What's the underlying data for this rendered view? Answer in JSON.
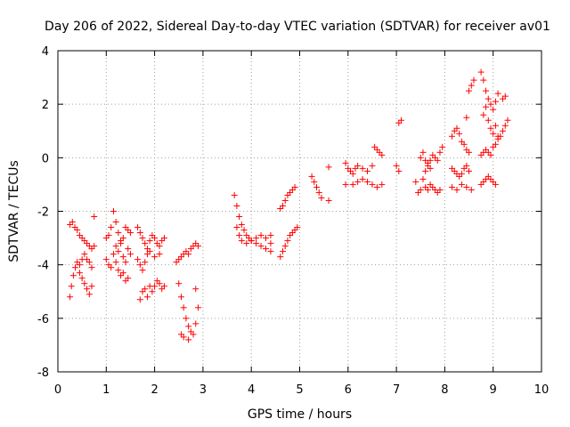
{
  "chart_data": {
    "type": "scatter",
    "title": "Day 206 of 2022, Sidereal Day-to-day VTEC variation (SDTVAR) for receiver av01",
    "xlabel": "GPS time / hours",
    "ylabel": "SDTVAR / TECUs",
    "xlim": [
      0,
      10
    ],
    "ylim": [
      -8,
      4
    ],
    "xticks": [
      0,
      1,
      2,
      3,
      4,
      5,
      6,
      7,
      8,
      9,
      10
    ],
    "yticks": [
      -8,
      -6,
      -4,
      -2,
      0,
      2,
      4
    ],
    "grid": true,
    "marker": "plus",
    "color": "#ff0000",
    "series": [
      {
        "values": [
          [
            0.25,
            -2.5
          ],
          [
            0.3,
            -2.4
          ],
          [
            0.35,
            -2.6
          ],
          [
            0.4,
            -2.7
          ],
          [
            0.45,
            -2.9
          ],
          [
            0.5,
            -3.0
          ],
          [
            0.55,
            -3.1
          ],
          [
            0.6,
            -3.2
          ],
          [
            0.65,
            -3.3
          ],
          [
            0.7,
            -3.4
          ],
          [
            0.75,
            -3.3
          ],
          [
            0.25,
            -5.2
          ],
          [
            0.28,
            -4.8
          ],
          [
            0.32,
            -4.4
          ],
          [
            0.36,
            -4.1
          ],
          [
            0.4,
            -3.9
          ],
          [
            0.45,
            -4.0
          ],
          [
            0.5,
            -3.8
          ],
          [
            0.55,
            -3.6
          ],
          [
            0.6,
            -3.8
          ],
          [
            0.65,
            -3.9
          ],
          [
            0.7,
            -4.1
          ],
          [
            0.45,
            -4.3
          ],
          [
            0.5,
            -4.5
          ],
          [
            0.55,
            -4.7
          ],
          [
            0.6,
            -4.9
          ],
          [
            0.65,
            -5.1
          ],
          [
            0.7,
            -4.8
          ],
          [
            0.75,
            -2.2
          ],
          [
            1.0,
            -3.0
          ],
          [
            1.05,
            -2.9
          ],
          [
            1.1,
            -2.6
          ],
          [
            1.15,
            -2.0
          ],
          [
            1.2,
            -2.4
          ],
          [
            1.25,
            -2.8
          ],
          [
            1.3,
            -3.1
          ],
          [
            1.35,
            -3.0
          ],
          [
            1.4,
            -2.6
          ],
          [
            1.45,
            -2.7
          ],
          [
            1.5,
            -2.8
          ],
          [
            1.0,
            -3.8
          ],
          [
            1.05,
            -4.0
          ],
          [
            1.1,
            -4.1
          ],
          [
            1.15,
            -3.6
          ],
          [
            1.2,
            -3.9
          ],
          [
            1.25,
            -4.2
          ],
          [
            1.3,
            -4.4
          ],
          [
            1.35,
            -4.3
          ],
          [
            1.4,
            -4.6
          ],
          [
            1.45,
            -4.5
          ],
          [
            1.2,
            -3.3
          ],
          [
            1.25,
            -3.5
          ],
          [
            1.3,
            -3.2
          ],
          [
            1.35,
            -3.7
          ],
          [
            1.4,
            -3.9
          ],
          [
            1.45,
            -3.4
          ],
          [
            1.5,
            -3.6
          ],
          [
            1.65,
            -2.6
          ],
          [
            1.7,
            -2.8
          ],
          [
            1.75,
            -3.0
          ],
          [
            1.8,
            -3.2
          ],
          [
            1.85,
            -3.4
          ],
          [
            1.9,
            -3.1
          ],
          [
            1.95,
            -2.9
          ],
          [
            2.0,
            -3.0
          ],
          [
            2.05,
            -3.2
          ],
          [
            2.1,
            -3.3
          ],
          [
            2.15,
            -3.1
          ],
          [
            2.2,
            -3.0
          ],
          [
            1.65,
            -3.8
          ],
          [
            1.7,
            -4.0
          ],
          [
            1.75,
            -4.2
          ],
          [
            1.8,
            -3.9
          ],
          [
            1.85,
            -3.6
          ],
          [
            1.9,
            -3.5
          ],
          [
            2.0,
            -3.7
          ],
          [
            2.1,
            -3.6
          ],
          [
            1.7,
            -5.3
          ],
          [
            1.75,
            -5.0
          ],
          [
            1.8,
            -4.9
          ],
          [
            1.85,
            -5.2
          ],
          [
            1.9,
            -4.8
          ],
          [
            1.95,
            -5.0
          ],
          [
            2.0,
            -4.8
          ],
          [
            2.05,
            -4.6
          ],
          [
            2.1,
            -4.7
          ],
          [
            2.15,
            -4.9
          ],
          [
            2.2,
            -4.8
          ],
          [
            2.45,
            -3.9
          ],
          [
            2.5,
            -3.8
          ],
          [
            2.55,
            -3.7
          ],
          [
            2.6,
            -3.6
          ],
          [
            2.65,
            -3.5
          ],
          [
            2.7,
            -3.6
          ],
          [
            2.75,
            -3.4
          ],
          [
            2.8,
            -3.3
          ],
          [
            2.85,
            -3.2
          ],
          [
            2.9,
            -3.3
          ],
          [
            2.5,
            -4.7
          ],
          [
            2.55,
            -5.2
          ],
          [
            2.6,
            -5.6
          ],
          [
            2.65,
            -6.0
          ],
          [
            2.7,
            -6.3
          ],
          [
            2.75,
            -6.5
          ],
          [
            2.8,
            -6.6
          ],
          [
            2.85,
            -6.2
          ],
          [
            2.9,
            -5.6
          ],
          [
            2.55,
            -6.6
          ],
          [
            2.6,
            -6.7
          ],
          [
            2.7,
            -6.8
          ],
          [
            2.85,
            -4.9
          ],
          [
            3.65,
            -1.4
          ],
          [
            3.7,
            -1.8
          ],
          [
            3.75,
            -2.2
          ],
          [
            3.8,
            -2.5
          ],
          [
            3.85,
            -2.7
          ],
          [
            3.9,
            -2.9
          ],
          [
            3.95,
            -3.0
          ],
          [
            4.0,
            -3.1
          ],
          [
            4.1,
            -3.2
          ],
          [
            4.2,
            -3.3
          ],
          [
            4.3,
            -3.4
          ],
          [
            4.4,
            -3.5
          ],
          [
            3.7,
            -2.6
          ],
          [
            3.75,
            -2.9
          ],
          [
            3.8,
            -3.1
          ],
          [
            3.9,
            -3.2
          ],
          [
            4.0,
            -3.1
          ],
          [
            4.1,
            -3.0
          ],
          [
            4.2,
            -2.9
          ],
          [
            4.3,
            -3.0
          ],
          [
            4.4,
            -2.9
          ],
          [
            4.4,
            -3.2
          ],
          [
            4.6,
            -3.7
          ],
          [
            4.65,
            -3.5
          ],
          [
            4.7,
            -3.3
          ],
          [
            4.75,
            -3.1
          ],
          [
            4.8,
            -2.9
          ],
          [
            4.85,
            -2.8
          ],
          [
            4.9,
            -2.7
          ],
          [
            4.95,
            -2.6
          ],
          [
            4.6,
            -1.9
          ],
          [
            4.65,
            -1.8
          ],
          [
            4.7,
            -1.6
          ],
          [
            4.75,
            -1.4
          ],
          [
            4.8,
            -1.3
          ],
          [
            4.85,
            -1.2
          ],
          [
            4.9,
            -1.1
          ],
          [
            5.25,
            -0.7
          ],
          [
            5.3,
            -0.9
          ],
          [
            5.35,
            -1.1
          ],
          [
            5.4,
            -1.3
          ],
          [
            5.45,
            -1.5
          ],
          [
            5.6,
            -0.35
          ],
          [
            5.6,
            -1.6
          ],
          [
            5.95,
            -0.2
          ],
          [
            6.0,
            -0.4
          ],
          [
            6.05,
            -0.5
          ],
          [
            6.1,
            -0.6
          ],
          [
            6.15,
            -0.4
          ],
          [
            6.2,
            -0.3
          ],
          [
            6.3,
            -0.4
          ],
          [
            6.4,
            -0.5
          ],
          [
            6.5,
            -0.3
          ],
          [
            6.55,
            0.4
          ],
          [
            6.6,
            0.3
          ],
          [
            6.65,
            0.2
          ],
          [
            6.7,
            0.1
          ],
          [
            5.95,
            -1.0
          ],
          [
            6.1,
            -1.0
          ],
          [
            6.2,
            -0.9
          ],
          [
            6.3,
            -0.8
          ],
          [
            6.4,
            -0.9
          ],
          [
            6.5,
            -1.0
          ],
          [
            6.6,
            -1.1
          ],
          [
            6.7,
            -1.0
          ],
          [
            7.0,
            -0.3
          ],
          [
            7.05,
            -0.5
          ],
          [
            7.05,
            1.3
          ],
          [
            7.1,
            1.4
          ],
          [
            7.4,
            -0.9
          ],
          [
            7.45,
            -1.3
          ],
          [
            7.5,
            -1.2
          ],
          [
            7.55,
            -0.8
          ],
          [
            7.6,
            -0.5
          ],
          [
            7.65,
            -0.2
          ],
          [
            7.7,
            -0.1
          ],
          [
            7.75,
            0.1
          ],
          [
            7.8,
            0.0
          ],
          [
            7.85,
            -0.1
          ],
          [
            7.9,
            0.2
          ],
          [
            7.95,
            0.4
          ],
          [
            7.5,
            0.0
          ],
          [
            7.55,
            0.2
          ],
          [
            7.6,
            -0.1
          ],
          [
            7.65,
            -0.3
          ],
          [
            7.7,
            -0.4
          ],
          [
            7.6,
            -1.1
          ],
          [
            7.65,
            -1.2
          ],
          [
            7.7,
            -1.0
          ],
          [
            7.75,
            -1.1
          ],
          [
            7.8,
            -1.2
          ],
          [
            7.85,
            -1.3
          ],
          [
            7.9,
            -1.2
          ],
          [
            8.15,
            0.8
          ],
          [
            8.2,
            1.0
          ],
          [
            8.25,
            1.1
          ],
          [
            8.3,
            0.9
          ],
          [
            8.35,
            0.6
          ],
          [
            8.4,
            0.5
          ],
          [
            8.45,
            0.3
          ],
          [
            8.5,
            0.2
          ],
          [
            8.15,
            -0.4
          ],
          [
            8.2,
            -0.5
          ],
          [
            8.25,
            -0.6
          ],
          [
            8.3,
            -0.7
          ],
          [
            8.35,
            -0.6
          ],
          [
            8.4,
            -0.4
          ],
          [
            8.45,
            -0.3
          ],
          [
            8.5,
            -0.5
          ],
          [
            8.15,
            -1.1
          ],
          [
            8.25,
            -1.2
          ],
          [
            8.35,
            -1.0
          ],
          [
            8.45,
            -1.1
          ],
          [
            8.55,
            -1.2
          ],
          [
            8.45,
            1.5
          ],
          [
            8.5,
            2.5
          ],
          [
            8.55,
            2.7
          ],
          [
            8.6,
            2.9
          ],
          [
            8.75,
            3.2
          ],
          [
            8.8,
            2.9
          ],
          [
            8.85,
            2.5
          ],
          [
            8.9,
            2.2
          ],
          [
            8.95,
            2.0
          ],
          [
            9.0,
            1.8
          ],
          [
            9.05,
            2.1
          ],
          [
            9.1,
            2.4
          ],
          [
            9.2,
            2.2
          ],
          [
            9.25,
            2.3
          ],
          [
            8.8,
            1.6
          ],
          [
            8.85,
            1.9
          ],
          [
            8.9,
            1.4
          ],
          [
            8.95,
            1.1
          ],
          [
            9.0,
            0.9
          ],
          [
            9.05,
            1.2
          ],
          [
            9.1,
            0.8
          ],
          [
            8.75,
            0.1
          ],
          [
            8.8,
            0.2
          ],
          [
            8.85,
            0.3
          ],
          [
            8.9,
            0.2
          ],
          [
            8.95,
            0.1
          ],
          [
            9.0,
            0.4
          ],
          [
            9.05,
            0.5
          ],
          [
            9.1,
            0.7
          ],
          [
            9.15,
            0.8
          ],
          [
            9.2,
            1.0
          ],
          [
            9.25,
            1.2
          ],
          [
            9.3,
            1.4
          ],
          [
            8.75,
            -1.0
          ],
          [
            8.8,
            -0.9
          ],
          [
            8.85,
            -0.8
          ],
          [
            8.9,
            -0.7
          ],
          [
            8.95,
            -0.8
          ],
          [
            9.0,
            -0.9
          ],
          [
            9.05,
            -1.0
          ]
        ]
      }
    ]
  }
}
